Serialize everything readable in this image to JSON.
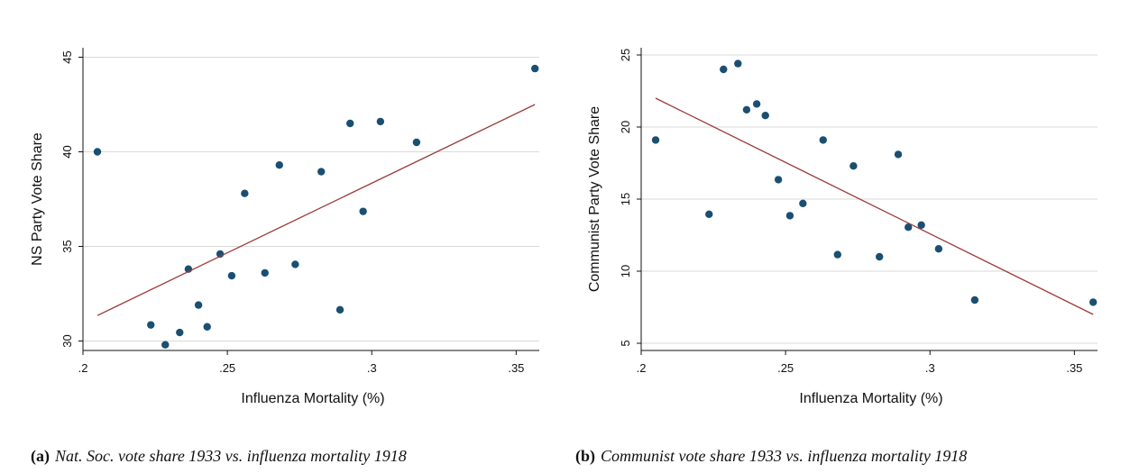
{
  "chart_data": [
    {
      "type": "scatter",
      "title": "",
      "xlabel": "Influenza Mortality (%)",
      "ylabel": "NS Party Vote Share",
      "xlim": [
        0.2,
        0.358
      ],
      "ylim": [
        29.5,
        45.5
      ],
      "x_ticks": [
        0.2,
        0.25,
        0.3,
        0.35
      ],
      "x_tick_labels": [
        ".2",
        ".25",
        ".3",
        ".35"
      ],
      "y_ticks": [
        30,
        35,
        40,
        45
      ],
      "y_tick_labels": [
        "30",
        "35",
        "40",
        "45"
      ],
      "grid": "horizontal",
      "legend": "none",
      "points": [
        {
          "x": 0.205,
          "y": 40.0
        },
        {
          "x": 0.2235,
          "y": 30.85
        },
        {
          "x": 0.2285,
          "y": 29.8
        },
        {
          "x": 0.2335,
          "y": 30.45
        },
        {
          "x": 0.2365,
          "y": 33.8
        },
        {
          "x": 0.24,
          "y": 31.9
        },
        {
          "x": 0.243,
          "y": 30.75
        },
        {
          "x": 0.2475,
          "y": 34.6
        },
        {
          "x": 0.2515,
          "y": 33.45
        },
        {
          "x": 0.256,
          "y": 37.8
        },
        {
          "x": 0.263,
          "y": 33.6
        },
        {
          "x": 0.268,
          "y": 39.3
        },
        {
          "x": 0.2735,
          "y": 34.05
        },
        {
          "x": 0.2825,
          "y": 38.95
        },
        {
          "x": 0.289,
          "y": 31.65
        },
        {
          "x": 0.2925,
          "y": 41.5
        },
        {
          "x": 0.297,
          "y": 36.85
        },
        {
          "x": 0.303,
          "y": 41.6
        },
        {
          "x": 0.3155,
          "y": 40.5
        },
        {
          "x": 0.3565,
          "y": 44.4
        }
      ],
      "fit_line": {
        "x": [
          0.205,
          0.3565
        ],
        "y": [
          31.35,
          42.5
        ]
      },
      "colors": {
        "points": "#1a4f72",
        "fit_line": "#9b3a3a",
        "grid": "#d9d9d9"
      }
    },
    {
      "type": "scatter",
      "title": "",
      "xlabel": "Influenza Mortality (%)",
      "ylabel": "Communist Party Vote Share",
      "xlim": [
        0.2,
        0.358
      ],
      "ylim": [
        4.5,
        25.5
      ],
      "x_ticks": [
        0.2,
        0.25,
        0.3,
        0.35
      ],
      "x_tick_labels": [
        ".2",
        ".25",
        ".3",
        ".35"
      ],
      "y_ticks": [
        5,
        10,
        15,
        20,
        25
      ],
      "y_tick_labels": [
        "5",
        "10",
        "15",
        "20",
        "25"
      ],
      "grid": "horizontal",
      "legend": "none",
      "points": [
        {
          "x": 0.205,
          "y": 19.1
        },
        {
          "x": 0.2235,
          "y": 13.95
        },
        {
          "x": 0.2285,
          "y": 24.0
        },
        {
          "x": 0.2335,
          "y": 24.4
        },
        {
          "x": 0.2365,
          "y": 21.2
        },
        {
          "x": 0.24,
          "y": 21.6
        },
        {
          "x": 0.243,
          "y": 20.8
        },
        {
          "x": 0.2475,
          "y": 16.35
        },
        {
          "x": 0.2515,
          "y": 13.85
        },
        {
          "x": 0.256,
          "y": 14.7
        },
        {
          "x": 0.263,
          "y": 19.1
        },
        {
          "x": 0.268,
          "y": 11.15
        },
        {
          "x": 0.2735,
          "y": 17.3
        },
        {
          "x": 0.2825,
          "y": 11.0
        },
        {
          "x": 0.289,
          "y": 18.1
        },
        {
          "x": 0.2925,
          "y": 13.05
        },
        {
          "x": 0.297,
          "y": 13.2
        },
        {
          "x": 0.303,
          "y": 11.55
        },
        {
          "x": 0.3155,
          "y": 8.0
        },
        {
          "x": 0.3565,
          "y": 7.85
        }
      ],
      "fit_line": {
        "x": [
          0.205,
          0.3565
        ],
        "y": [
          22.0,
          7.0
        ]
      },
      "colors": {
        "points": "#1a4f72",
        "fit_line": "#9b3a3a",
        "grid": "#d9d9d9"
      }
    }
  ],
  "captions": [
    {
      "label": "(a)",
      "text": "Nat. Soc. vote share 1933 vs. influenza mortality 1918"
    },
    {
      "label": "(b)",
      "text": "Communist vote share 1933 vs. influenza mortality 1918"
    }
  ]
}
